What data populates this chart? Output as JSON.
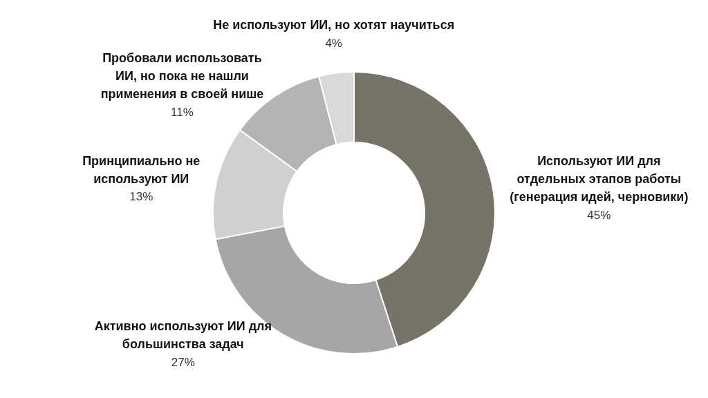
{
  "chart_data": {
    "type": "donut",
    "categories": [
      "Используют ИИ для отдельных этапов работы (генерация идей, черновики)",
      "Активно используют ИИ для большинства задач",
      "Принципиально не используют ИИ",
      "Пробовали использовать ИИ, но пока не нашли применения в своей нише",
      "Не используют ИИ, но хотят научиться"
    ],
    "values": [
      45,
      27,
      13,
      11,
      4
    ],
    "value_labels": [
      "45%",
      "27%",
      "13%",
      "11%",
      "4%"
    ],
    "colors": [
      "#777366",
      "#a6a6a6",
      "#d0d0d0",
      "#b4b4b4",
      "#d9d9d9"
    ]
  }
}
